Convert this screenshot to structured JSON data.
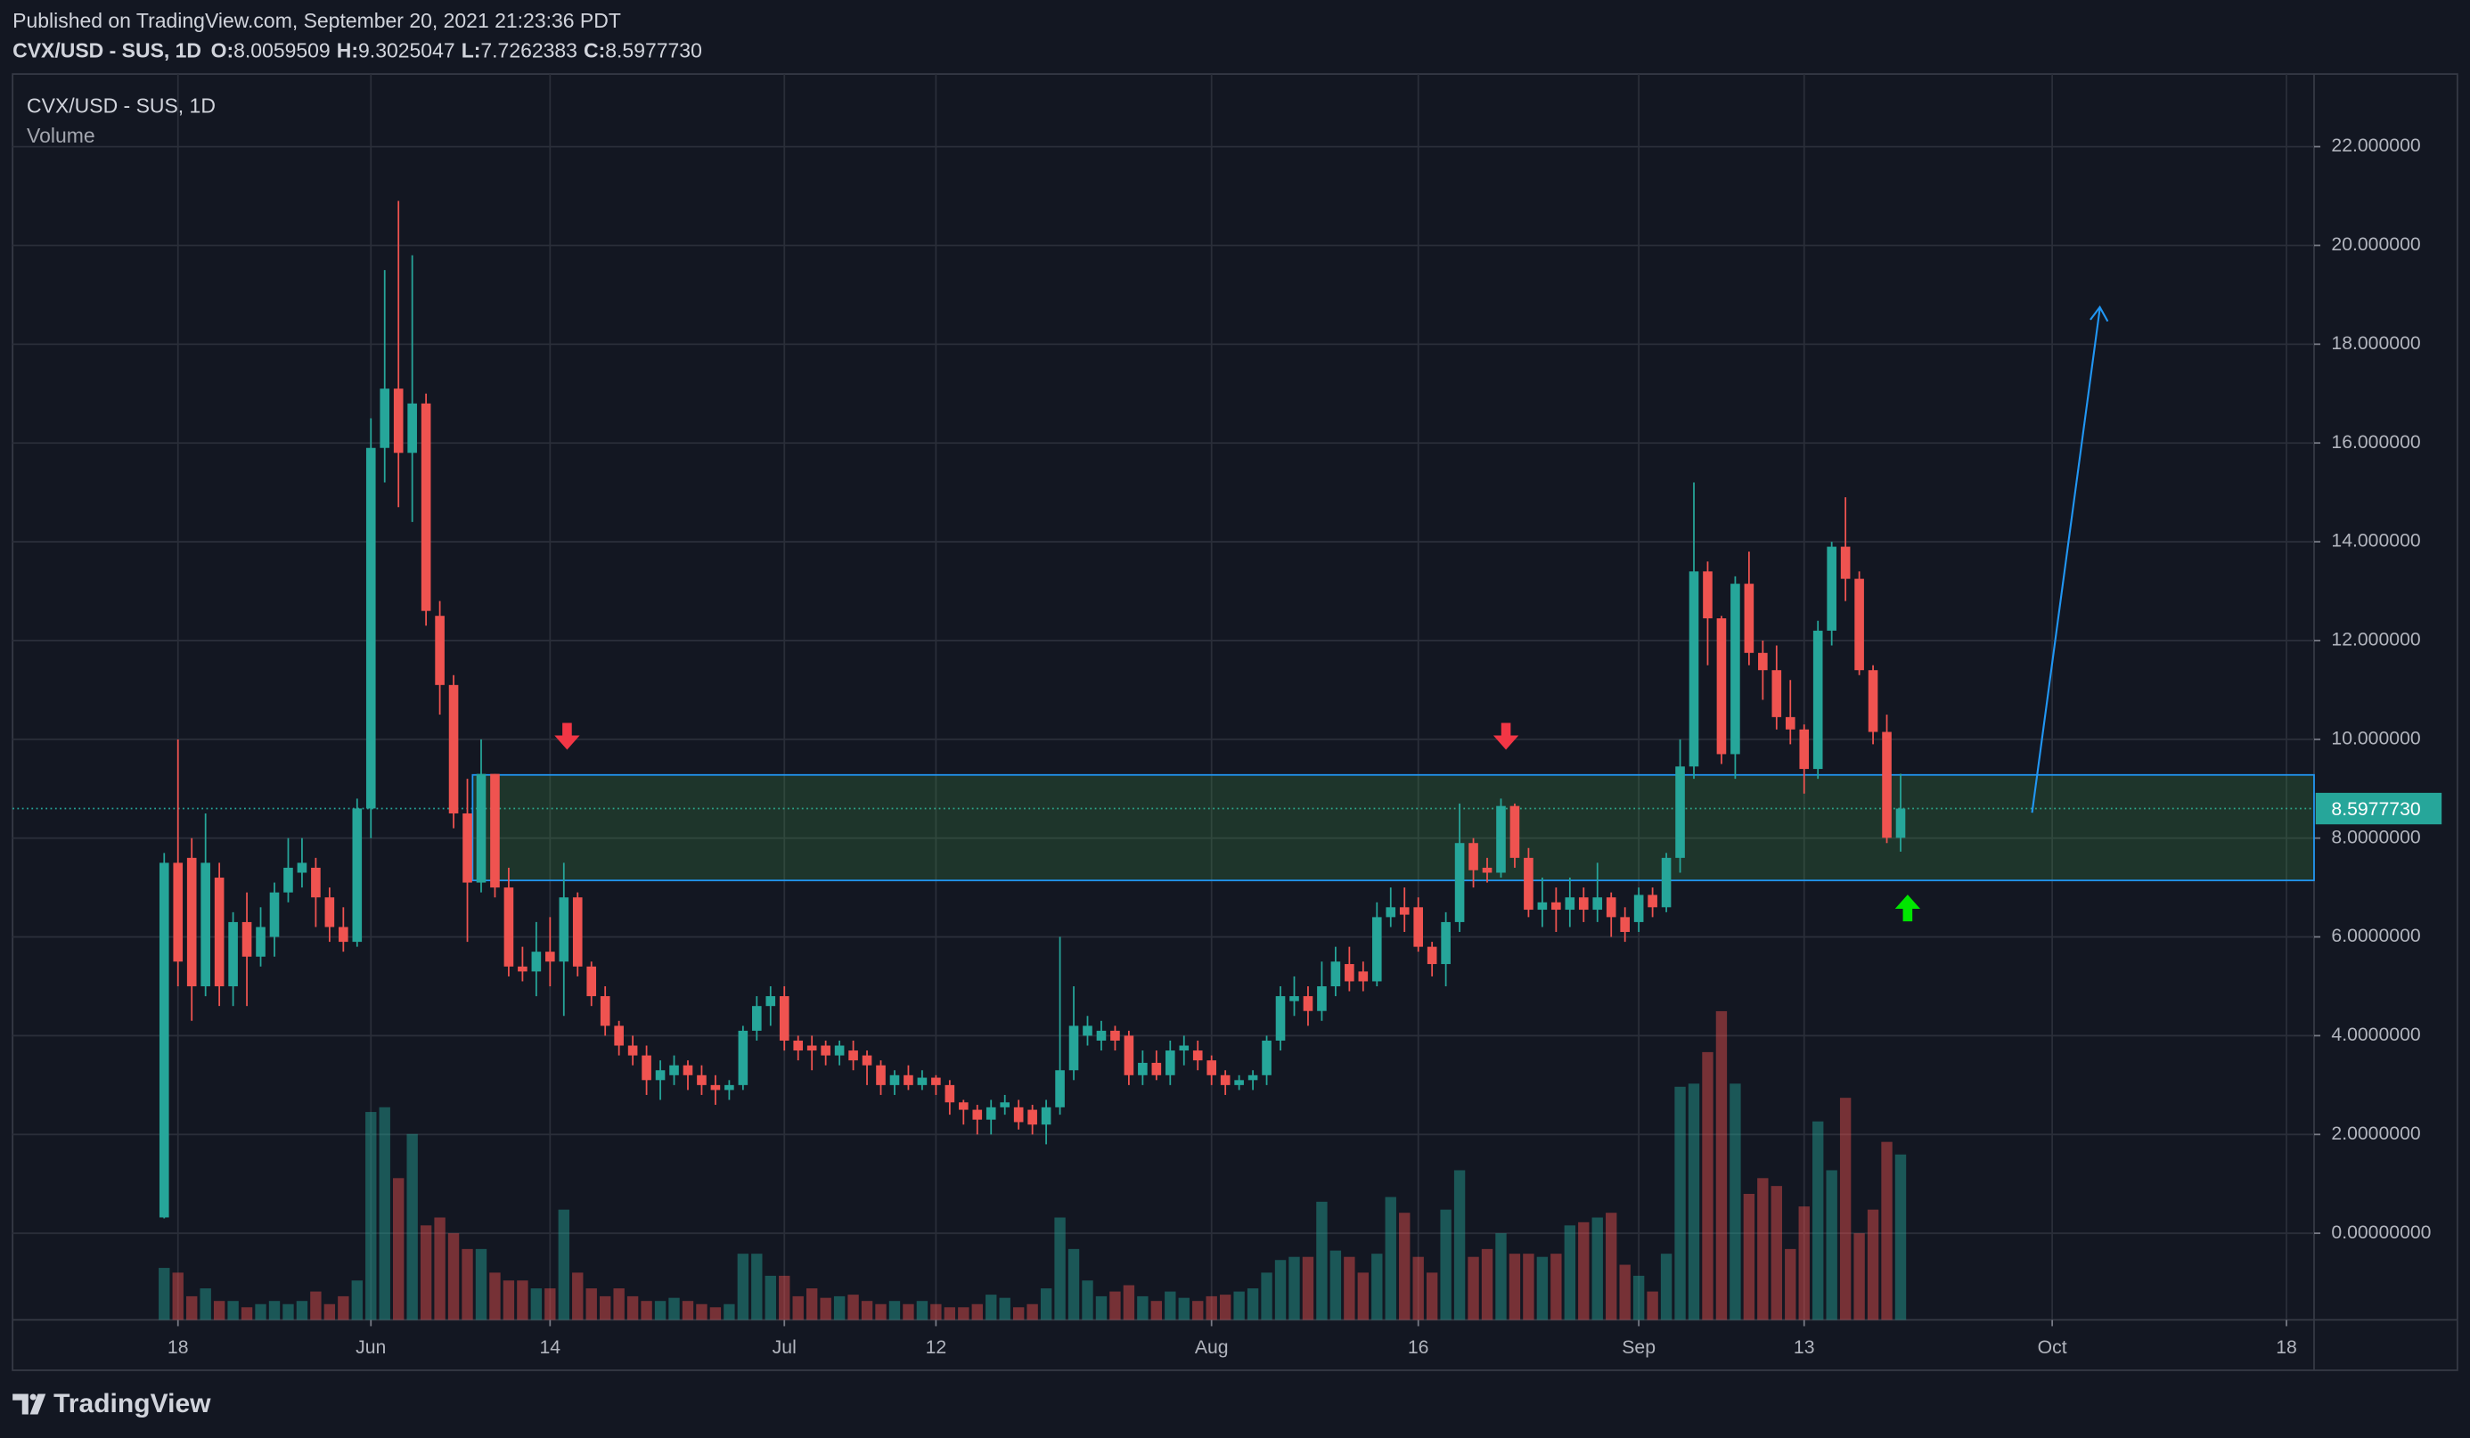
{
  "header": {
    "published": "Published on TradingView.com, September 20, 2021 21:23:36 PDT",
    "symbol": "CVX/USD - SUS, 1D",
    "ohlc": [
      {
        "key": "O:",
        "value": 8.0059509
      },
      {
        "key": "H:",
        "value": 9.3025047
      },
      {
        "key": "L:",
        "value": 7.7262383
      },
      {
        "key": "C:",
        "value": 8.597773,
        "label": "8.5977730"
      }
    ]
  },
  "chart_data": {
    "type": "candlestick",
    "title": "CVX/USD - SUS, 1D",
    "volume_title": "Volume",
    "x": [
      "05-17",
      "05-18",
      "05-19",
      "05-20",
      "05-21",
      "05-22",
      "05-23",
      "05-24",
      "05-25",
      "05-26",
      "05-27",
      "05-28",
      "05-29",
      "05-30",
      "05-31",
      "06-01",
      "06-02",
      "06-03",
      "06-04",
      "06-05",
      "06-06",
      "06-07",
      "06-08",
      "06-09",
      "06-10",
      "06-11",
      "06-12",
      "06-13",
      "06-14",
      "06-15",
      "06-16",
      "06-17",
      "06-18",
      "06-19",
      "06-20",
      "06-21",
      "06-22",
      "06-23",
      "06-24",
      "06-25",
      "06-26",
      "06-27",
      "06-28",
      "06-29",
      "06-30",
      "07-01",
      "07-02",
      "07-03",
      "07-04",
      "07-05",
      "07-06",
      "07-07",
      "07-08",
      "07-09",
      "07-10",
      "07-11",
      "07-12",
      "07-13",
      "07-14",
      "07-15",
      "07-16",
      "07-17",
      "07-18",
      "07-19",
      "07-20",
      "07-21",
      "07-22",
      "07-23",
      "07-24",
      "07-25",
      "07-26",
      "07-27",
      "07-28",
      "07-29",
      "07-30",
      "07-31",
      "08-01",
      "08-02",
      "08-03",
      "08-04",
      "08-05",
      "08-06",
      "08-07",
      "08-08",
      "08-09",
      "08-10",
      "08-11",
      "08-12",
      "08-13",
      "08-14",
      "08-15",
      "08-16",
      "08-17",
      "08-18",
      "08-19",
      "08-20",
      "08-21",
      "08-22",
      "08-23",
      "08-24",
      "08-25",
      "08-26",
      "08-27",
      "08-28",
      "08-29",
      "08-30",
      "08-31",
      "09-01",
      "09-02",
      "09-03",
      "09-04",
      "09-05",
      "09-06",
      "09-07",
      "09-08",
      "09-09",
      "09-10",
      "09-11",
      "09-12",
      "09-13",
      "09-14",
      "09-15",
      "09-16",
      "09-17",
      "09-18",
      "09-19",
      "09-20"
    ],
    "open": [
      0.32,
      7.5,
      7.6,
      5.0,
      7.2,
      5.0,
      6.3,
      5.6,
      6.0,
      6.9,
      7.3,
      7.4,
      6.8,
      6.2,
      5.9,
      8.6,
      15.9,
      17.1,
      15.8,
      16.8,
      12.5,
      11.1,
      8.5,
      7.1,
      9.3,
      7.0,
      5.4,
      5.3,
      5.7,
      5.5,
      6.8,
      5.4,
      4.8,
      4.2,
      3.8,
      3.6,
      3.1,
      3.2,
      3.4,
      3.2,
      3.0,
      2.9,
      3.0,
      4.1,
      4.6,
      4.8,
      3.9,
      3.8,
      3.8,
      3.6,
      3.7,
      3.6,
      3.4,
      3.0,
      3.2,
      3.0,
      3.15,
      3.0,
      2.65,
      2.5,
      2.3,
      2.55,
      2.55,
      2.5,
      2.2,
      2.55,
      3.3,
      4.0,
      3.9,
      4.1,
      4.0,
      3.2,
      3.45,
      3.2,
      3.7,
      3.7,
      3.5,
      3.2,
      3.0,
      3.1,
      3.2,
      3.9,
      4.7,
      4.8,
      4.5,
      5.0,
      5.45,
      5.3,
      5.1,
      6.4,
      6.6,
      6.6,
      5.8,
      5.45,
      6.3,
      7.9,
      7.4,
      7.3,
      8.65,
      7.6,
      6.55,
      6.7,
      6.55,
      6.8,
      6.55,
      6.8,
      6.4,
      6.3,
      6.85,
      6.6,
      7.6,
      9.45,
      13.4,
      12.45,
      9.7,
      13.15,
      11.75,
      11.4,
      10.45,
      10.2,
      9.4,
      12.2,
      13.9,
      13.25,
      11.4,
      10.15,
      8.0059509
    ],
    "high": [
      7.7,
      10.0,
      8.0,
      8.5,
      7.5,
      6.5,
      6.9,
      6.6,
      7.1,
      8.0,
      8.0,
      7.6,
      7.0,
      6.6,
      8.8,
      16.5,
      19.5,
      20.9,
      19.8,
      17.0,
      12.8,
      11.3,
      9.2,
      10.0,
      9.3,
      7.4,
      5.8,
      6.3,
      6.4,
      7.5,
      6.9,
      5.5,
      5.0,
      4.3,
      4.0,
      3.8,
      3.5,
      3.6,
      3.5,
      3.4,
      3.2,
      3.1,
      4.2,
      4.8,
      5.0,
      5.0,
      4.0,
      4.0,
      3.9,
      3.9,
      3.9,
      3.7,
      3.5,
      3.3,
      3.4,
      3.3,
      3.2,
      3.1,
      2.7,
      2.6,
      2.7,
      2.8,
      2.7,
      2.6,
      2.7,
      6.0,
      5.0,
      4.4,
      4.3,
      4.2,
      4.1,
      3.7,
      3.7,
      3.9,
      4.0,
      3.9,
      3.6,
      3.3,
      3.2,
      3.3,
      4.0,
      5.0,
      5.2,
      5.0,
      5.5,
      5.8,
      5.8,
      5.5,
      6.7,
      7.0,
      7.0,
      6.8,
      5.9,
      6.5,
      8.7,
      8.0,
      7.6,
      8.8,
      8.7,
      7.8,
      7.2,
      7.0,
      7.2,
      7.0,
      7.5,
      6.9,
      6.6,
      7.0,
      7.0,
      7.7,
      10.0,
      15.2,
      13.6,
      12.5,
      13.3,
      13.8,
      12.0,
      11.9,
      11.2,
      10.3,
      12.4,
      14.0,
      14.9,
      13.4,
      11.5,
      10.5,
      9.3025047
    ],
    "low": [
      0.3,
      5.0,
      4.3,
      4.8,
      4.6,
      4.6,
      4.6,
      5.4,
      5.6,
      6.7,
      7.0,
      6.2,
      5.9,
      5.7,
      5.8,
      8.0,
      15.2,
      14.7,
      14.4,
      12.3,
      10.5,
      8.2,
      5.9,
      6.9,
      6.8,
      5.2,
      5.1,
      4.8,
      5.0,
      4.4,
      5.2,
      4.6,
      4.0,
      3.6,
      3.4,
      2.8,
      2.7,
      3.0,
      2.9,
      2.8,
      2.6,
      2.7,
      2.9,
      3.9,
      4.2,
      3.7,
      3.5,
      3.3,
      3.4,
      3.4,
      3.3,
      3.0,
      2.8,
      2.8,
      2.9,
      2.9,
      2.8,
      2.4,
      2.2,
      2.0,
      2.0,
      2.4,
      2.1,
      2.0,
      1.8,
      2.4,
      3.1,
      3.8,
      3.7,
      3.7,
      3.0,
      3.0,
      3.1,
      3.0,
      3.4,
      3.3,
      3.0,
      2.8,
      2.9,
      2.9,
      3.0,
      3.7,
      4.4,
      4.2,
      4.3,
      4.8,
      4.9,
      4.9,
      5.0,
      6.2,
      6.1,
      5.7,
      5.2,
      5.0,
      6.1,
      7.0,
      7.1,
      7.2,
      7.4,
      6.4,
      6.2,
      6.1,
      6.2,
      6.3,
      6.3,
      6.0,
      5.9,
      6.1,
      6.4,
      6.5,
      7.3,
      9.2,
      11.5,
      9.5,
      9.2,
      11.5,
      10.8,
      10.2,
      9.9,
      8.9,
      9.2,
      11.9,
      12.8,
      11.3,
      9.9,
      7.9,
      7.7262383
    ],
    "close": [
      7.5,
      5.5,
      5.0,
      7.5,
      5.0,
      6.3,
      5.6,
      6.2,
      6.9,
      7.4,
      7.5,
      6.8,
      6.2,
      5.9,
      8.6,
      15.9,
      17.1,
      15.8,
      16.8,
      12.6,
      11.1,
      8.5,
      7.1,
      9.3,
      7.0,
      5.4,
      5.3,
      5.7,
      5.5,
      6.8,
      5.4,
      4.8,
      4.2,
      3.8,
      3.6,
      3.1,
      3.3,
      3.4,
      3.2,
      3.0,
      2.9,
      3.0,
      4.1,
      4.6,
      4.8,
      3.9,
      3.7,
      3.7,
      3.6,
      3.8,
      3.5,
      3.4,
      3.0,
      3.2,
      3.0,
      3.15,
      3.0,
      2.65,
      2.5,
      2.3,
      2.55,
      2.65,
      2.25,
      2.2,
      2.55,
      3.3,
      4.2,
      4.2,
      4.1,
      3.9,
      3.2,
      3.45,
      3.2,
      3.7,
      3.8,
      3.5,
      3.2,
      3.0,
      3.1,
      3.2,
      3.9,
      4.8,
      4.8,
      4.5,
      5.0,
      5.5,
      5.1,
      5.1,
      6.4,
      6.6,
      6.45,
      5.8,
      5.45,
      6.3,
      7.9,
      7.35,
      7.3,
      8.65,
      7.6,
      6.55,
      6.7,
      6.55,
      6.8,
      6.55,
      6.8,
      6.4,
      6.1,
      6.85,
      6.6,
      7.6,
      9.45,
      13.4,
      12.45,
      9.7,
      13.15,
      11.75,
      11.4,
      10.45,
      10.2,
      9.4,
      12.2,
      13.9,
      13.25,
      11.4,
      10.15,
      8.006,
      8.597773
    ],
    "volume": [
      33,
      30,
      15,
      20,
      12,
      12,
      8,
      10,
      12,
      10,
      12,
      18,
      10,
      15,
      25,
      132,
      135,
      90,
      118,
      60,
      65,
      55,
      45,
      45,
      30,
      25,
      25,
      20,
      20,
      70,
      30,
      20,
      15,
      20,
      15,
      12,
      12,
      14,
      12,
      10,
      8,
      10,
      42,
      42,
      28,
      28,
      15,
      20,
      14,
      15,
      16,
      12,
      10,
      12,
      10,
      12,
      10,
      8,
      8,
      10,
      16,
      14,
      8,
      10,
      20,
      65,
      45,
      25,
      15,
      18,
      22,
      15,
      12,
      18,
      14,
      12,
      15,
      16,
      18,
      20,
      30,
      38,
      40,
      40,
      75,
      44,
      40,
      30,
      42,
      78,
      68,
      40,
      30,
      70,
      95,
      40,
      45,
      55,
      42,
      42,
      40,
      42,
      60,
      62,
      65,
      68,
      35,
      28,
      18,
      42,
      148,
      150,
      170,
      196,
      150,
      80,
      90,
      85,
      45,
      72,
      126,
      95,
      141,
      55,
      70,
      113,
      105
    ],
    "up_color": "#26a69a",
    "down_color": "#ef5350",
    "xlim": [
      "05-06",
      "10-20"
    ],
    "xticks": [
      {
        "value": "05-18",
        "label": "18"
      },
      {
        "value": "06-01",
        "label": "Jun"
      },
      {
        "value": "06-14",
        "label": "14"
      },
      {
        "value": "07-01",
        "label": "Jul"
      },
      {
        "value": "07-12",
        "label": "12"
      },
      {
        "value": "08-01",
        "label": "Aug"
      },
      {
        "value": "08-16",
        "label": "16"
      },
      {
        "value": "09-01",
        "label": "Sep"
      },
      {
        "value": "09-13",
        "label": "13"
      },
      {
        "value": "10-01",
        "label": "Oct"
      },
      {
        "value": "10-18",
        "label": "18"
      }
    ],
    "ylim": [
      -1.754,
      23.47
    ],
    "yticks": [
      {
        "value": 0,
        "label": "0.00000000"
      },
      {
        "value": 2,
        "label": "2.0000000"
      },
      {
        "value": 4,
        "label": "4.0000000"
      },
      {
        "value": 6,
        "label": "6.0000000"
      },
      {
        "value": 8,
        "label": "8.0000000"
      },
      {
        "value": 10,
        "label": "10.000000"
      },
      {
        "value": 12,
        "label": "12.000000"
      },
      {
        "value": 14,
        "label": "14.000000"
      },
      {
        "value": 16,
        "label": "16.000000"
      },
      {
        "value": 18,
        "label": "18.000000"
      },
      {
        "value": 20,
        "label": "20.000000"
      },
      {
        "value": 22,
        "label": "22.000000"
      }
    ],
    "grid": true,
    "last_price": {
      "value": 8.597773,
      "label": "8.5977730"
    }
  },
  "footer": {
    "brand": "TradingView"
  }
}
